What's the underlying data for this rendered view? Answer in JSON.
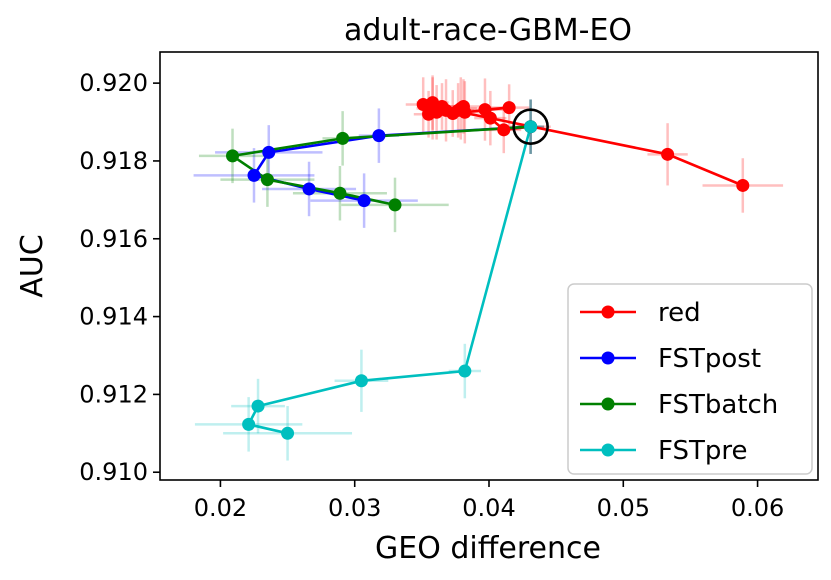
{
  "chart_data": {
    "type": "scatter",
    "title": "adult-race-GBM-EO",
    "xlabel": "GEO difference",
    "ylabel": "AUC",
    "xlim": [
      0.0155,
      0.0645
    ],
    "ylim": [
      0.9098,
      0.9208
    ],
    "xticks": [
      0.02,
      0.03,
      0.04,
      0.05,
      0.06
    ],
    "yticks": [
      0.91,
      0.912,
      0.914,
      0.916,
      0.918,
      0.92
    ],
    "xtick_labels": [
      "0.02",
      "0.03",
      "0.04",
      "0.05",
      "0.06"
    ],
    "ytick_labels": [
      "0.910",
      "0.912",
      "0.914",
      "0.916",
      "0.918",
      "0.920"
    ],
    "legend_position": "lower-right",
    "grid": false,
    "highlight": {
      "x": 0.0431,
      "y": 0.91888,
      "marker": "circle"
    },
    "series": [
      {
        "name": "red",
        "color": "#ff0000",
        "connected": true,
        "points": [
          {
            "x": 0.0431,
            "y": 0.91888,
            "xerr": 0.0015,
            "yerr": 0.0007
          },
          {
            "x": 0.0411,
            "y": 0.9188,
            "xerr": 0.0013,
            "yerr": 0.0006
          },
          {
            "x": 0.0401,
            "y": 0.9191,
            "xerr": 0.0012,
            "yerr": 0.0007
          },
          {
            "x": 0.0397,
            "y": 0.91932,
            "xerr": 0.0015,
            "yerr": 0.0008
          },
          {
            "x": 0.0415,
            "y": 0.91937,
            "xerr": 0.0015,
            "yerr": 0.0006
          },
          {
            "x": 0.0382,
            "y": 0.91925,
            "xerr": 0.0012,
            "yerr": 0.0008
          },
          {
            "x": 0.0381,
            "y": 0.9194,
            "xerr": 0.0013,
            "yerr": 0.0007
          },
          {
            "x": 0.0379,
            "y": 0.91935,
            "xerr": 0.0012,
            "yerr": 0.0008
          },
          {
            "x": 0.0377,
            "y": 0.9193,
            "xerr": 0.0012,
            "yerr": 0.0007
          },
          {
            "x": 0.0373,
            "y": 0.91922,
            "xerr": 0.0011,
            "yerr": 0.0006
          },
          {
            "x": 0.0368,
            "y": 0.9193,
            "xerr": 0.0012,
            "yerr": 0.0008
          },
          {
            "x": 0.0365,
            "y": 0.9194,
            "xerr": 0.0013,
            "yerr": 0.0006
          },
          {
            "x": 0.0361,
            "y": 0.91925,
            "xerr": 0.0011,
            "yerr": 0.0007
          },
          {
            "x": 0.0358,
            "y": 0.91935,
            "xerr": 0.0012,
            "yerr": 0.0008
          },
          {
            "x": 0.0358,
            "y": 0.9195,
            "xerr": 0.0012,
            "yerr": 0.0007
          },
          {
            "x": 0.0355,
            "y": 0.9192,
            "xerr": 0.0011,
            "yerr": 0.0006
          },
          {
            "x": 0.0351,
            "y": 0.91945,
            "xerr": 0.0013,
            "yerr": 0.0007
          },
          {
            "x": 0.0533,
            "y": 0.91817,
            "xerr": 0.0015,
            "yerr": 0.0008
          },
          {
            "x": 0.0589,
            "y": 0.91737,
            "xerr": 0.003,
            "yerr": 0.0007
          }
        ]
      },
      {
        "name": "FSTpost",
        "color": "#0000ff",
        "connected": true,
        "points": [
          {
            "x": 0.0431,
            "y": 0.91888,
            "xerr": 0.001,
            "yerr": 0.0007
          },
          {
            "x": 0.0318,
            "y": 0.91865,
            "xerr": 0.0015,
            "yerr": 0.0007
          },
          {
            "x": 0.0236,
            "y": 0.91822,
            "xerr": 0.004,
            "yerr": 0.0007
          },
          {
            "x": 0.0225,
            "y": 0.91763,
            "xerr": 0.0045,
            "yerr": 0.0007
          },
          {
            "x": 0.0266,
            "y": 0.91728,
            "xerr": 0.0035,
            "yerr": 0.0007
          },
          {
            "x": 0.0307,
            "y": 0.91698,
            "xerr": 0.004,
            "yerr": 0.0007
          }
        ]
      },
      {
        "name": "FSTbatch",
        "color": "#008000",
        "connected": true,
        "points": [
          {
            "x": 0.0431,
            "y": 0.91888,
            "xerr": 0.001,
            "yerr": 0.0007
          },
          {
            "x": 0.0291,
            "y": 0.91858,
            "xerr": 0.0015,
            "yerr": 0.0007
          },
          {
            "x": 0.0209,
            "y": 0.91813,
            "xerr": 0.0025,
            "yerr": 0.0007
          },
          {
            "x": 0.0235,
            "y": 0.91752,
            "xerr": 0.0035,
            "yerr": 0.0007
          },
          {
            "x": 0.0289,
            "y": 0.91717,
            "xerr": 0.0035,
            "yerr": 0.0007
          },
          {
            "x": 0.033,
            "y": 0.91687,
            "xerr": 0.004,
            "yerr": 0.0007
          }
        ]
      },
      {
        "name": "FSTpre",
        "color": "#00bfbf",
        "connected": true,
        "points": [
          {
            "x": 0.0431,
            "y": 0.91888,
            "xerr": 0.0008,
            "yerr": 0.0007
          },
          {
            "x": 0.0382,
            "y": 0.9126,
            "xerr": 0.0012,
            "yerr": 0.0007
          },
          {
            "x": 0.0305,
            "y": 0.91235,
            "xerr": 0.002,
            "yerr": 0.0008
          },
          {
            "x": 0.0228,
            "y": 0.9117,
            "xerr": 0.002,
            "yerr": 0.0007
          },
          {
            "x": 0.0221,
            "y": 0.91123,
            "xerr": 0.004,
            "yerr": 0.0007
          },
          {
            "x": 0.025,
            "y": 0.911,
            "xerr": 0.0048,
            "yerr": 0.0007
          }
        ]
      }
    ]
  }
}
